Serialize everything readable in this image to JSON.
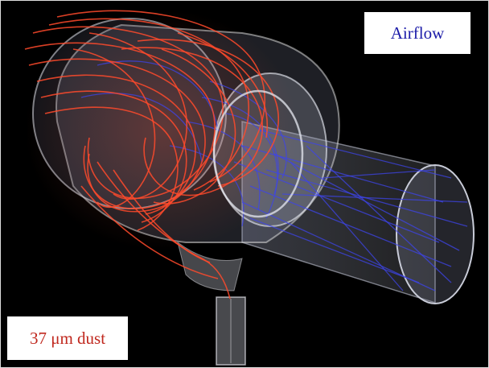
{
  "labels": {
    "airflow": "Airflow",
    "dust": "37 μm dust"
  },
  "colors": {
    "background": "#000000",
    "airflow_streamlines": "#3e44e8",
    "dust_streamlines": "#ff4a2c",
    "housing": "#d8d8d8"
  }
}
